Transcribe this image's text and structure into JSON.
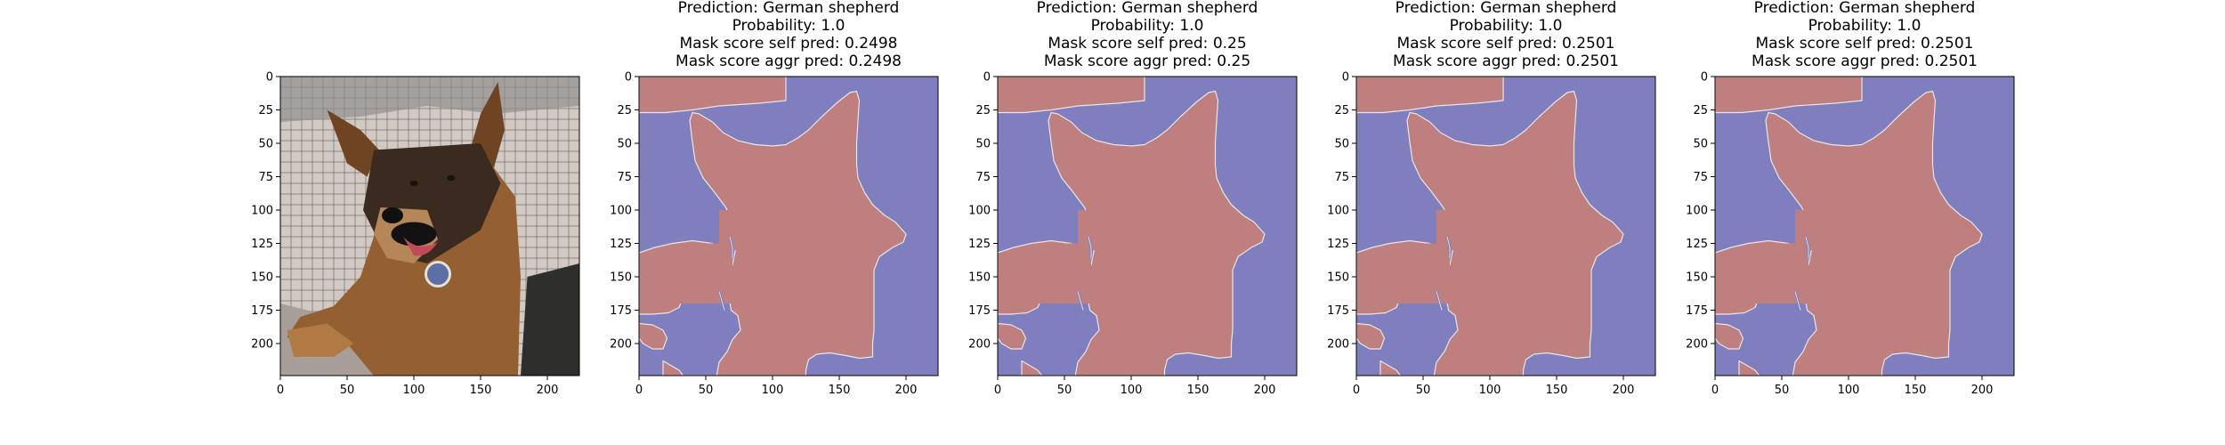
{
  "colors": {
    "foreground_mask": "#bf7f7f",
    "background_mask": "#7f7fbf",
    "boundary": "#e6e6e6",
    "axes": "#000000"
  },
  "chart_data": [
    {
      "type": "image",
      "content": "photo of a German shepherd dog lying on a checkered couch",
      "title_lines": [],
      "xticks": [
        "0",
        "50",
        "100",
        "150",
        "200"
      ],
      "yticks": [
        "0",
        "25",
        "50",
        "75",
        "100",
        "125",
        "150",
        "175",
        "200"
      ],
      "xlim": [
        0,
        224
      ],
      "ylim": [
        224,
        0
      ]
    },
    {
      "type": "heatmap",
      "content": "binary segmentation mask (red = dog, blue = background)",
      "title_lines": [
        "Prediction: German shepherd",
        "Probability: 1.0",
        "Mask score self pred: 0.2498",
        "Mask score aggr pred: 0.2498"
      ],
      "prediction": "German shepherd",
      "probability": 1.0,
      "mask_score_self_pred": 0.2498,
      "mask_score_aggr_pred": 0.2498,
      "xticks": [
        "0",
        "50",
        "100",
        "150",
        "200"
      ],
      "yticks": [
        "0",
        "25",
        "50",
        "75",
        "100",
        "125",
        "150",
        "175",
        "200"
      ],
      "xlim": [
        0,
        224
      ],
      "ylim": [
        224,
        0
      ]
    },
    {
      "type": "heatmap",
      "content": "binary segmentation mask (red = dog, blue = background)",
      "title_lines": [
        "Prediction: German shepherd",
        "Probability: 1.0",
        "Mask score self pred: 0.25",
        "Mask score aggr pred: 0.25"
      ],
      "prediction": "German shepherd",
      "probability": 1.0,
      "mask_score_self_pred": 0.25,
      "mask_score_aggr_pred": 0.25,
      "xticks": [
        "0",
        "50",
        "100",
        "150",
        "200"
      ],
      "yticks": [
        "0",
        "25",
        "50",
        "75",
        "100",
        "125",
        "150",
        "175",
        "200"
      ],
      "xlim": [
        0,
        224
      ],
      "ylim": [
        224,
        0
      ]
    },
    {
      "type": "heatmap",
      "content": "binary segmentation mask (red = dog, blue = background)",
      "title_lines": [
        "Prediction: German shepherd",
        "Probability: 1.0",
        "Mask score self pred: 0.2501",
        "Mask score aggr pred: 0.2501"
      ],
      "prediction": "German shepherd",
      "probability": 1.0,
      "mask_score_self_pred": 0.2501,
      "mask_score_aggr_pred": 0.2501,
      "xticks": [
        "0",
        "50",
        "100",
        "150",
        "200"
      ],
      "yticks": [
        "0",
        "25",
        "50",
        "75",
        "100",
        "125",
        "150",
        "175",
        "200"
      ],
      "xlim": [
        0,
        224
      ],
      "ylim": [
        224,
        0
      ]
    },
    {
      "type": "heatmap",
      "content": "binary segmentation mask (red = dog, blue = background)",
      "title_lines": [
        "Prediction: German shepherd",
        "Probability: 1.0",
        "Mask score self pred: 0.2501",
        "Mask score aggr pred: 0.2501"
      ],
      "prediction": "German shepherd",
      "probability": 1.0,
      "mask_score_self_pred": 0.2501,
      "mask_score_aggr_pred": 0.2501,
      "xticks": [
        "0",
        "50",
        "100",
        "150",
        "200"
      ],
      "yticks": [
        "0",
        "25",
        "50",
        "75",
        "100",
        "125",
        "150",
        "175",
        "200"
      ],
      "xlim": [
        0,
        224
      ],
      "ylim": [
        224,
        0
      ]
    }
  ]
}
